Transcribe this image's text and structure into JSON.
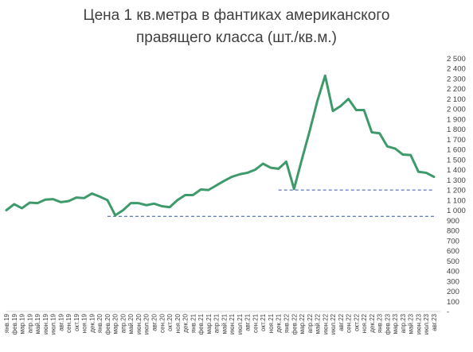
{
  "title_line1": "Цена 1 кв.метра в фантиках американского",
  "title_line2": "правящего класса (шт./кв.м.)",
  "colors": {
    "line": "#3f9a6b",
    "reference": "#3355aa",
    "axis": "#d9d9d9",
    "text": "#404040"
  },
  "chart_data": {
    "type": "line",
    "title": "Цена 1 кв.метра в фантиках американского правящего класса (шт./кв.м.)",
    "xlabel": "",
    "ylabel": "",
    "ylim": [
      0,
      2500
    ],
    "ytick_step": 100,
    "grid": false,
    "legend": "none",
    "y_tick_labels": [
      "-",
      "100",
      "200",
      "300",
      "400",
      "500",
      "600",
      "700",
      "800",
      "900",
      "1 000",
      "1 100",
      "1 200",
      "1 300",
      "1 400",
      "1 500",
      "1 600",
      "1 700",
      "1 800",
      "1 900",
      "2 000",
      "2 100",
      "2 200",
      "2 300",
      "2 400",
      "2 500"
    ],
    "categories": [
      "янв.19",
      "фев.19",
      "мар.19",
      "апр.19",
      "май.19",
      "июн.19",
      "июл.19",
      "авг.19",
      "сен.19",
      "окт.19",
      "ноя.19",
      "дек.19",
      "янв.20",
      "фев.20",
      "мар.20",
      "апр.20",
      "май.20",
      "июн.20",
      "июл.20",
      "авг.20",
      "сен.20",
      "окт.20",
      "ноя.20",
      "дек.20",
      "янв.21",
      "фев.21",
      "мар.21",
      "апр.21",
      "май.21",
      "июн.21",
      "июл.21",
      "авг.21",
      "сен.21",
      "окт.21",
      "ноя.21",
      "дек.21",
      "янв.22",
      "фев.22",
      "мар.22",
      "апр.22",
      "май.22",
      "июн.22",
      "июл.22",
      "авг.22",
      "сен.22",
      "окт.22",
      "ноя.22",
      "дек.22",
      "янв.23",
      "фев.23",
      "мар.23",
      "апр.23",
      "май.23",
      "июн.23",
      "июл.23",
      "авг.23"
    ],
    "series": [
      {
        "values": [
          1000,
          1060,
          1020,
          1075,
          1070,
          1105,
          1110,
          1080,
          1090,
          1125,
          1120,
          1165,
          1135,
          1100,
          950,
          1000,
          1070,
          1070,
          1050,
          1065,
          1040,
          1030,
          1100,
          1150,
          1150,
          1205,
          1200,
          1245,
          1290,
          1330,
          1355,
          1370,
          1400,
          1460,
          1420,
          1410,
          1480,
          1210,
          1500,
          1780,
          2080,
          2330,
          1980,
          2030,
          2100,
          1990,
          1990,
          1770,
          1760,
          1630,
          1610,
          1550,
          1545,
          1380,
          1370,
          1330
        ]
      }
    ],
    "reference_lines": [
      {
        "y": 940,
        "from": "фев.20",
        "to": "авг.23"
      },
      {
        "y": 1200,
        "from": "дек.21",
        "to": "авг.23"
      }
    ]
  }
}
